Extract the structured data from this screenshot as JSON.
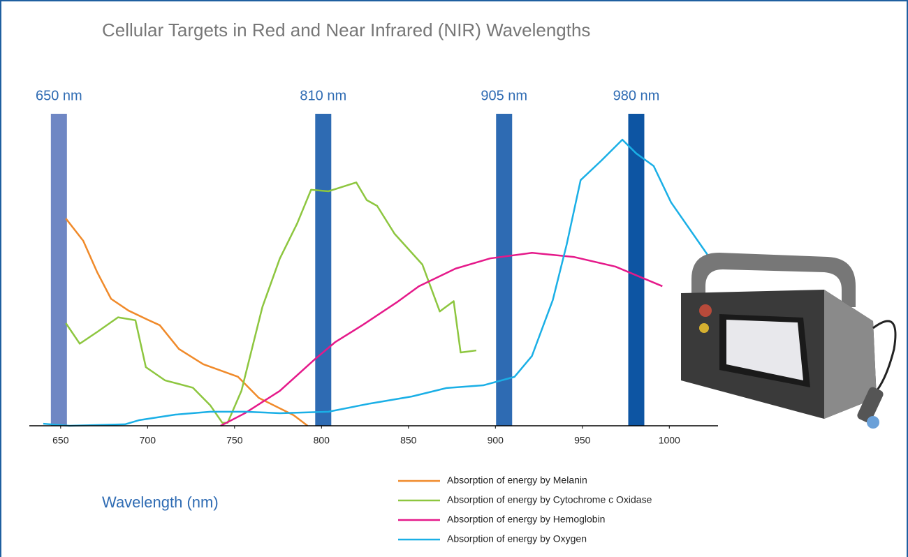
{
  "chart_data": {
    "type": "line",
    "title": "Cellular Targets in Red and Near Infrared (NIR) Wavelengths",
    "xlabel": "Wavelength (nm)",
    "xlim": [
      632,
      1028
    ],
    "xticks": [
      650,
      700,
      750,
      800,
      850,
      900,
      950,
      1000
    ],
    "ylim": [
      0,
      100
    ],
    "legend": "bottom",
    "bands": [
      {
        "label": "650 nm",
        "x": 649,
        "color": "#6f87c4"
      },
      {
        "label": "810 nm",
        "x": 801,
        "color": "#2e6bb3"
      },
      {
        "label": "905 nm",
        "x": 905,
        "color": "#2e6bb3"
      },
      {
        "label": "980 nm",
        "x": 981,
        "color": "#0d55a3"
      }
    ],
    "series": [
      {
        "name": "Absorption of energy by Melanin",
        "color": "#f08a2a",
        "x": [
          653,
          663,
          671,
          679,
          689,
          700,
          707,
          718,
          732,
          752,
          764,
          784,
          792
        ],
        "values": [
          70.7,
          63.1,
          52.4,
          43.3,
          39.3,
          36.2,
          34.3,
          26.2,
          21,
          16.7,
          9.5,
          3.6,
          0
        ]
      },
      {
        "name": "Absorption of energy by Cytochrome c Oxidase",
        "color": "#8dc63f",
        "x": [
          653,
          661,
          671,
          683,
          693,
          699,
          710,
          726,
          736,
          743,
          746,
          754,
          766,
          776,
          786,
          794,
          804,
          812,
          820,
          826,
          832,
          842,
          858,
          868,
          876,
          880,
          889
        ],
        "values": [
          35,
          28,
          32,
          37,
          36,
          20,
          15.5,
          13,
          7,
          1,
          1,
          12,
          40.5,
          57,
          69,
          80.5,
          80,
          81.5,
          83,
          77,
          75,
          65.5,
          55,
          39,
          42.5,
          25,
          25.7
        ]
      },
      {
        "name": "Absorption of energy by Hemoglobin",
        "color": "#e5198a",
        "x": [
          742,
          756,
          776,
          796,
          808,
          824,
          844,
          856,
          877,
          897,
          921,
          945,
          969,
          996
        ],
        "values": [
          0,
          4.3,
          11.9,
          22.6,
          28.6,
          34.5,
          42.4,
          47.6,
          53.6,
          57.1,
          59,
          57.6,
          54.3,
          47.6
        ]
      },
      {
        "name": "Absorption of energy by Oxygen",
        "color": "#1aafe6",
        "x": [
          640,
          655,
          687,
          695,
          716,
          736,
          756,
          776,
          804,
          828,
          852,
          872,
          893,
          911,
          921,
          933,
          941,
          949,
          961,
          973,
          981,
          991,
          1001,
          1022
        ],
        "values": [
          0.7,
          0,
          0.5,
          1.9,
          3.8,
          4.8,
          4.8,
          4.3,
          4.8,
          7.6,
          10,
          12.9,
          13.8,
          16.7,
          23.8,
          42.9,
          61.9,
          83.8,
          90.5,
          97.6,
          92.9,
          88.6,
          76.2,
          58.3
        ]
      }
    ]
  }
}
